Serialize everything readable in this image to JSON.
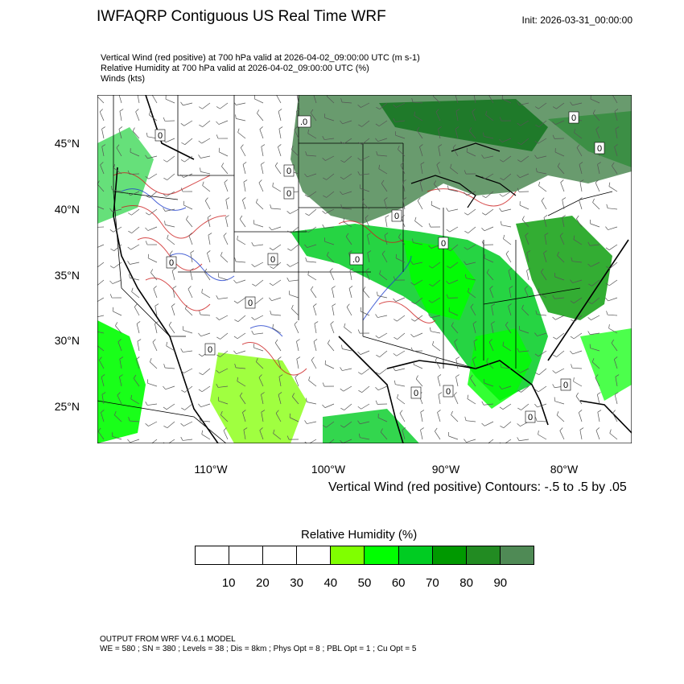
{
  "header": {
    "title": "IWFAQRP Contiguous US Real Time WRF",
    "init": "Init: 2026-03-31_00:00:00"
  },
  "subtitles": [
    "Vertical Wind (red positive) at 700 hPa valid at 2026-04-02_09:00:00 UTC   (m s-1)",
    "Relative Humidity at 700 hPa valid at 2026-04-02_09:00:00 UTC   (%)",
    "Winds   (kts)"
  ],
  "map": {
    "lat_labels": [
      "45°N",
      "40°N",
      "35°N",
      "30°N",
      "25°N"
    ],
    "lon_labels": [
      "110°W",
      "100°W",
      "90°W",
      "80°W"
    ],
    "contour_labels": [
      "0",
      ".0",
      "0",
      "0",
      "0",
      "0",
      "0",
      "0",
      "0",
      "0",
      ".0",
      "0",
      "0",
      "0",
      "0",
      "0",
      "0"
    ]
  },
  "contour_note": "Vertical Wind (red positive) Contours: -.5 to .5 by .05",
  "legend": {
    "title": "Relative Humidity  (%)",
    "colors": [
      "#ffffff",
      "#ffffff",
      "#ffffff",
      "#ffffff",
      "#80ff00",
      "#00ff00",
      "#00cc22",
      "#009900",
      "#228b22",
      "#4f8a55"
    ],
    "labels": [
      "10",
      "20",
      "30",
      "40",
      "50",
      "60",
      "70",
      "80",
      "90"
    ]
  },
  "footer": {
    "line1": "OUTPUT FROM WRF V4.6.1 MODEL",
    "line2": "WE = 580 ; SN = 380 ; Levels = 38 ; Dis = 8km ; Phys Opt = 8 ; PBL Opt = 1 ; Cu Opt = 5"
  }
}
